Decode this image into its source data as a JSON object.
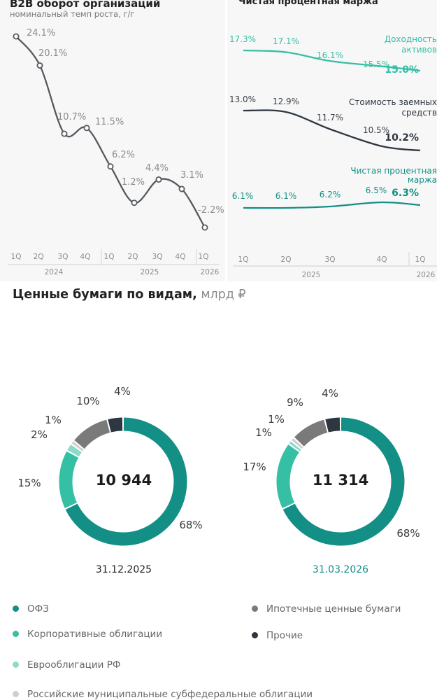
{
  "panels": {
    "left": {
      "title": "B2B оборот организаций",
      "subtitle": "номинальный темп роста, г/г"
    },
    "right": {
      "title": "Чистая процентная маржа"
    }
  },
  "section": {
    "title": "Ценные бумаги по видам,",
    "unit": "млрд ₽"
  },
  "colors": {
    "teal_dark": "#138f86",
    "teal_mid": "#35bfa4",
    "teal_light": "#8fd9c7",
    "gray_light": "#cfcfcf",
    "gray": "#7a7a7a",
    "dark": "#2e3640"
  },
  "chart_data": [
    {
      "type": "line",
      "title": "B2B оборот организаций",
      "subtitle": "номинальный темп роста, г/г",
      "x": [
        "1Q",
        "2Q",
        "3Q",
        "4Q",
        "1Q",
        "2Q",
        "3Q",
        "4Q",
        "1Q"
      ],
      "groups": [
        {
          "label": "2024",
          "span": [
            0,
            3
          ]
        },
        {
          "label": "2025",
          "span": [
            4,
            7
          ]
        },
        {
          "label": "2026",
          "span": [
            8,
            8
          ]
        }
      ],
      "series": [
        {
          "values": [
            24.1,
            20.1,
            10.7,
            11.5,
            6.2,
            1.2,
            4.4,
            3.1,
            -2.2
          ]
        }
      ],
      "data_labels": [
        "24.1%",
        "20.1%",
        "10.7%",
        "11.5%",
        "6.2%",
        "1.2%",
        "4.4%",
        "3.1%",
        "-2.2%"
      ],
      "ylim": [
        -3,
        26
      ]
    },
    {
      "type": "line",
      "title": "Чистая процентная маржа",
      "x": [
        "1Q",
        "2Q",
        "3Q",
        "4Q",
        "1Q"
      ],
      "groups": [
        {
          "label": "2025",
          "span": [
            0,
            3
          ]
        },
        {
          "label": "2026",
          "span": [
            4,
            4
          ]
        }
      ],
      "series": [
        {
          "name": "Доходность активов",
          "values": [
            17.3,
            17.1,
            16.1,
            15.5,
            15.0
          ],
          "labels": [
            "17.3%",
            "17.1%",
            "16.1%",
            "15.5%",
            "15.0%"
          ],
          "color": "#35bfa4"
        },
        {
          "name": "Стоимость заемных средств",
          "values": [
            13.0,
            12.9,
            11.7,
            10.5,
            10.2
          ],
          "labels": [
            "13.0%",
            "12.9%",
            "11.7%",
            "10.5%",
            "10.2%"
          ],
          "color": "#2e3640"
        },
        {
          "name": "Чистая процентная маржа",
          "values": [
            6.1,
            6.1,
            6.2,
            6.5,
            6.3
          ],
          "labels": [
            "6.1%",
            "6.1%",
            "6.2%",
            "6.5%",
            "6.3%"
          ],
          "color": "#138f86"
        }
      ],
      "series_label_lines": [
        [
          "Доходность",
          "активов"
        ],
        [
          "Стоимость заемных",
          "средств"
        ],
        [
          "Чистая процентная",
          "маржа"
        ]
      ]
    },
    {
      "type": "pie",
      "donut": true,
      "title": "Ценные бумаги по видам, млрд ₽",
      "categories": [
        "ОФЗ",
        "Корпоративные облигации",
        "Еврооблигации РФ",
        "Российские муниципальные субфедеральные облигации",
        "Ипотечные ценные бумаги",
        "Прочие"
      ],
      "charts": [
        {
          "date": "31.12.2025",
          "total": "10 944",
          "values": [
            68,
            15,
            2,
            1,
            10,
            4
          ],
          "labels": [
            "68%",
            "15%",
            "2%",
            "1%",
            "10%",
            "4%"
          ]
        },
        {
          "date": "31.03.2026",
          "total": "11 314",
          "values": [
            68,
            17,
            1,
            1,
            9,
            4
          ],
          "labels": [
            "68%",
            "17%",
            "1%",
            "1%",
            "9%",
            "4%"
          ]
        }
      ]
    }
  ]
}
